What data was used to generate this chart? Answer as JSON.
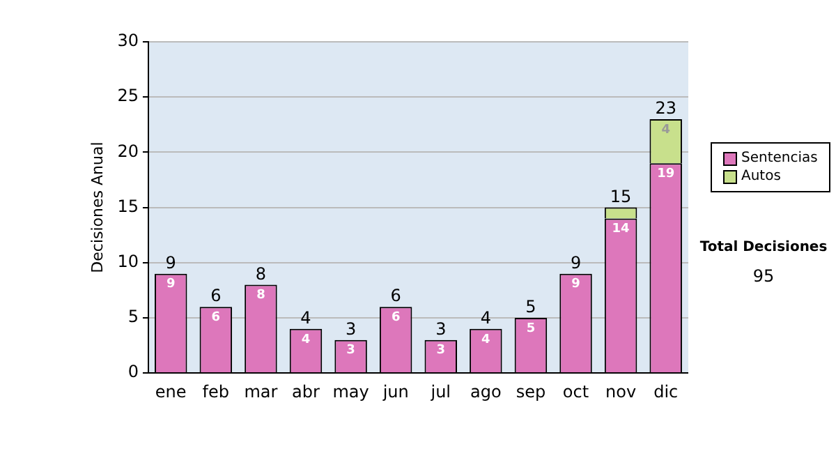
{
  "chart_data": {
    "type": "bar",
    "stacked": true,
    "ylabel": "Decisiones Anual",
    "categories": [
      "ene",
      "feb",
      "mar",
      "abr",
      "may",
      "jun",
      "jul",
      "ago",
      "sep",
      "oct",
      "nov",
      "dic"
    ],
    "series": [
      {
        "name": "Sentencias",
        "color": "#dd77bb",
        "values": [
          9,
          6,
          8,
          4,
          3,
          6,
          3,
          4,
          5,
          9,
          14,
          19
        ],
        "value_labels": [
          "9",
          "6",
          "8",
          "4",
          "3",
          "6",
          "3",
          "4",
          "5",
          "9",
          "14",
          "19"
        ]
      },
      {
        "name": "Autos",
        "color": "#c8e08c",
        "values": [
          0,
          0,
          0,
          0,
          0,
          0,
          0,
          0,
          0,
          0,
          1,
          4
        ],
        "value_labels": [
          null,
          null,
          null,
          null,
          null,
          null,
          null,
          null,
          null,
          null,
          null,
          "4"
        ]
      }
    ],
    "totals": [
      "9",
      "6",
      "8",
      "4",
      "3",
      "6",
      "3",
      "4",
      "5",
      "9",
      "15",
      "23"
    ],
    "ylim": [
      0,
      30
    ],
    "yticks": [
      0,
      5,
      10,
      15,
      20,
      25,
      30
    ],
    "grid": "y",
    "legend": "right",
    "annotations": [
      "Total Decisiones",
      "95"
    ]
  }
}
